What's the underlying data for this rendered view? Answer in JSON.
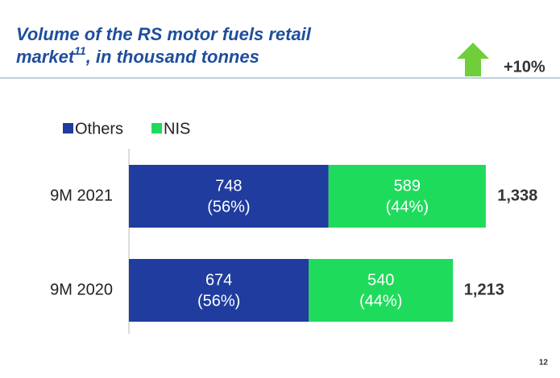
{
  "chart_data": {
    "type": "stacked_barh",
    "title": "Volume of the RS motor fuels retail",
    "title_line2": "market",
    "title_footnote": "11",
    "title_suffix": ", in thousand tonnes",
    "change_label": "+10%",
    "page_number": "12",
    "categories": [
      "9M 2021",
      "9M 2020"
    ],
    "series": [
      {
        "name": "Others",
        "color": "#1f3c9e",
        "values": [
          748,
          674
        ],
        "shares": [
          56,
          56
        ],
        "share_labels": [
          "(56%)",
          "(56%)"
        ]
      },
      {
        "name": "NIS",
        "color": "#1fdb5b",
        "values": [
          589,
          540
        ],
        "shares": [
          44,
          44
        ],
        "share_labels": [
          "(44%)",
          "(44%)"
        ]
      }
    ],
    "totals": [
      1338,
      1213
    ],
    "total_labels": [
      "1,338",
      "1,213"
    ],
    "xlim": [
      0,
      1600
    ],
    "legend": "top-left"
  }
}
